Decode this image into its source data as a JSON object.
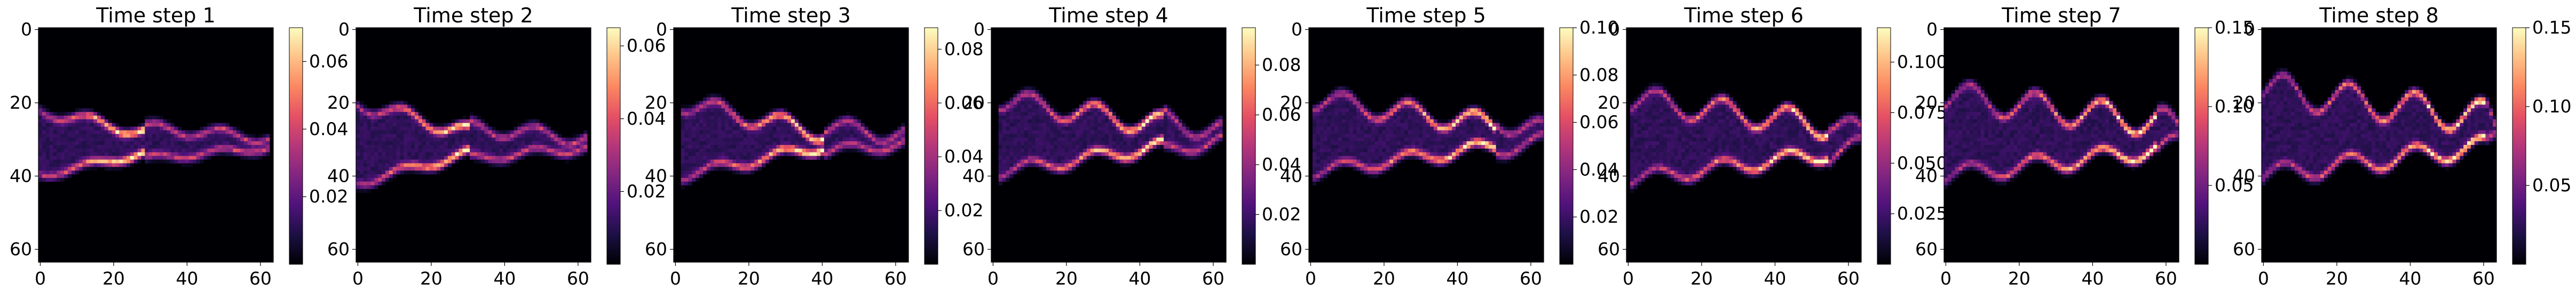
{
  "figure": {
    "panel_count": 8,
    "colormap": "magma",
    "colormap_stops": [
      "#000004",
      "#1c1044",
      "#4f127b",
      "#812581",
      "#b5367a",
      "#e55064",
      "#fb8761",
      "#fec287",
      "#fcfdbf"
    ]
  },
  "chart_data": [
    {
      "type": "heatmap",
      "title": "Time step 1",
      "x_ticks": [
        "0",
        "20",
        "40",
        "60"
      ],
      "y_ticks": [
        "0",
        "20",
        "40",
        "60"
      ],
      "xlim": [
        0,
        63
      ],
      "ylim": [
        63,
        0
      ],
      "grid_size": 64,
      "colorbar": {
        "min": 0,
        "max": 0.07,
        "ticks": [
          "0.02",
          "0.04",
          "0.06"
        ],
        "tick_values": [
          0.02,
          0.04,
          0.06
        ]
      },
      "pattern": {
        "center_y": 31,
        "x_start": 0,
        "x_tip": 28,
        "x_end": 62,
        "half_width": 9,
        "tip_width": 3,
        "wave": 1.5,
        "phase": 0.0
      }
    },
    {
      "type": "heatmap",
      "title": "Time step 2",
      "x_ticks": [
        "0",
        "20",
        "40",
        "60"
      ],
      "y_ticks": [
        "0",
        "20",
        "40",
        "60"
      ],
      "xlim": [
        0,
        63
      ],
      "ylim": [
        63,
        0
      ],
      "grid_size": 64,
      "colorbar": {
        "min": 0,
        "max": 0.065,
        "ticks": [
          "0.02",
          "0.04",
          "0.06"
        ],
        "tick_values": [
          0.02,
          0.04,
          0.06
        ]
      },
      "pattern": {
        "center_y": 31,
        "x_start": 0,
        "x_tip": 30,
        "x_end": 62,
        "half_width": 11,
        "tip_width": 3,
        "wave": 2.0,
        "phase": 0.4
      }
    },
    {
      "type": "heatmap",
      "title": "Time step 3",
      "x_ticks": [
        "0",
        "20",
        "40",
        "60"
      ],
      "y_ticks": [
        "0",
        "20",
        "40",
        "60"
      ],
      "xlim": [
        0,
        63
      ],
      "ylim": [
        63,
        0
      ],
      "grid_size": 64,
      "colorbar": {
        "min": 0,
        "max": 0.088,
        "ticks": [
          "0.02",
          "0.04",
          "0.06",
          "0.08"
        ],
        "tick_values": [
          0.02,
          0.04,
          0.06,
          0.08
        ]
      },
      "pattern": {
        "center_y": 30,
        "x_start": 2,
        "x_tip": 40,
        "x_end": 62,
        "half_width": 10,
        "tip_width": 2,
        "wave": 2.5,
        "phase": 0.8
      }
    },
    {
      "type": "heatmap",
      "title": "Time step 4",
      "x_ticks": [
        "0",
        "20",
        "40",
        "60"
      ],
      "y_ticks": [
        "0",
        "20",
        "40",
        "60"
      ],
      "xlim": [
        0,
        63
      ],
      "ylim": [
        63,
        0
      ],
      "grid_size": 64,
      "colorbar": {
        "min": 0,
        "max": 0.095,
        "ticks": [
          "0.02",
          "0.04",
          "0.06",
          "0.08"
        ],
        "tick_values": [
          0.02,
          0.04,
          0.06,
          0.08
        ]
      },
      "pattern": {
        "center_y": 29,
        "x_start": 2,
        "x_tip": 46,
        "x_end": 62,
        "half_width": 10,
        "tip_width": 3,
        "wave": 3.0,
        "phase": 1.2
      }
    },
    {
      "type": "heatmap",
      "title": "Time step 5",
      "x_ticks": [
        "0",
        "20",
        "40",
        "60"
      ],
      "y_ticks": [
        "0",
        "20",
        "40",
        "60"
      ],
      "xlim": [
        0,
        63
      ],
      "ylim": [
        63,
        0
      ],
      "grid_size": 64,
      "colorbar": {
        "min": 0,
        "max": 0.1,
        "ticks": [
          "0.02",
          "0.04",
          "0.06",
          "0.08",
          "0.10"
        ],
        "tick_values": [
          0.02,
          0.04,
          0.06,
          0.08,
          0.1
        ]
      },
      "pattern": {
        "center_y": 29,
        "x_start": 1,
        "x_tip": 50,
        "x_end": 63,
        "half_width": 10,
        "tip_width": 3,
        "wave": 3.0,
        "phase": 1.6
      }
    },
    {
      "type": "heatmap",
      "title": "Time step 6",
      "x_ticks": [
        "0",
        "20",
        "40",
        "60"
      ],
      "y_ticks": [
        "0",
        "20",
        "40",
        "60"
      ],
      "xlim": [
        0,
        63
      ],
      "ylim": [
        63,
        0
      ],
      "grid_size": 64,
      "colorbar": {
        "min": 0,
        "max": 0.117,
        "ticks": [
          "0.025",
          "0.050",
          "0.075",
          "0.100"
        ],
        "tick_values": [
          0.025,
          0.05,
          0.075,
          0.1
        ]
      },
      "pattern": {
        "center_y": 30,
        "x_start": 1,
        "x_tip": 54,
        "x_end": 63,
        "half_width": 11,
        "tip_width": 4,
        "wave": 3.5,
        "phase": 2.0
      }
    },
    {
      "type": "heatmap",
      "title": "Time step 7",
      "x_ticks": [
        "0",
        "20",
        "40",
        "60"
      ],
      "y_ticks": [
        "0",
        "20",
        "40",
        "60"
      ],
      "xlim": [
        0,
        63
      ],
      "ylim": [
        63,
        0
      ],
      "grid_size": 64,
      "colorbar": {
        "min": 0,
        "max": 0.15,
        "ticks": [
          "0.05",
          "0.10",
          "0.15"
        ],
        "tick_values": [
          0.05,
          0.1,
          0.15
        ]
      },
      "pattern": {
        "center_y": 29,
        "x_start": 0,
        "x_tip": 57,
        "x_end": 63,
        "half_width": 11,
        "tip_width": 4,
        "wave": 4.0,
        "phase": 2.4
      }
    },
    {
      "type": "heatmap",
      "title": "Time step 8",
      "x_ticks": [
        "0",
        "20",
        "40",
        "60"
      ],
      "y_ticks": [
        "0",
        "20",
        "40",
        "60"
      ],
      "xlim": [
        0,
        63
      ],
      "ylim": [
        63,
        0
      ],
      "grid_size": 64,
      "colorbar": {
        "min": 0,
        "max": 0.15,
        "ticks": [
          "0.05",
          "0.10",
          "0.15"
        ],
        "tick_values": [
          0.05,
          0.1,
          0.15
        ]
      },
      "pattern": {
        "center_y": 28,
        "x_start": 0,
        "x_tip": 60,
        "x_end": 63,
        "half_width": 12,
        "tip_width": 4,
        "wave": 4.5,
        "phase": 2.8
      }
    }
  ]
}
